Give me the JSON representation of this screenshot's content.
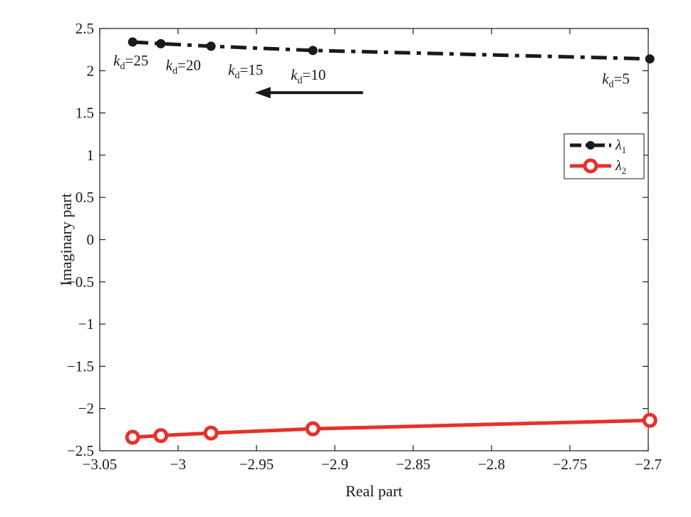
{
  "chart_data": {
    "type": "line",
    "title": "",
    "xlabel": "Real part",
    "ylabel": "Imaginary part",
    "xlim": [
      -3.05,
      -2.7
    ],
    "ylim": [
      -2.5,
      2.5
    ],
    "xticks": [
      -3.05,
      -3.0,
      -2.95,
      -2.9,
      -2.85,
      -2.8,
      -2.75,
      -2.7
    ],
    "xtick_labels": [
      "−3.05",
      "−3",
      "−2.95",
      "−2.9",
      "−2.85",
      "−2.8",
      "−2.75",
      "−2.7"
    ],
    "yticks": [
      -2.5,
      -2.0,
      -1.5,
      -1.0,
      -0.5,
      0,
      0.5,
      1.0,
      1.5,
      2.0,
      2.5
    ],
    "ytick_labels": [
      "−2.5",
      "−2",
      "−1.5",
      "−1",
      "−0.5",
      "0",
      "0.5",
      "1",
      "1.5",
      "2",
      "2.5"
    ],
    "grid": false,
    "legend_position": "top-right",
    "series": [
      {
        "name": "λ",
        "subscript": "1",
        "color": "#1a1a1a",
        "line_style": "dash-dot",
        "marker": "filled-circle",
        "x": [
          -3.029,
          -3.011,
          -2.979,
          -2.914,
          -2.699
        ],
        "y": [
          2.34,
          2.32,
          2.29,
          2.24,
          2.14
        ]
      },
      {
        "name": "λ",
        "subscript": "2",
        "color": "#e8302a",
        "line_style": "solid",
        "marker": "open-circle",
        "x": [
          -3.029,
          -3.011,
          -2.979,
          -2.914,
          -2.699
        ],
        "y": [
          -2.34,
          -2.32,
          -2.29,
          -2.24,
          -2.14
        ]
      }
    ],
    "annotations": [
      {
        "k": "k",
        "sub": "d",
        "text": "=25",
        "x": -3.029,
        "y": 2.34
      },
      {
        "k": "k",
        "sub": "d",
        "text": "=20",
        "x": -3.011,
        "y": 2.32
      },
      {
        "k": "k",
        "sub": "d",
        "text": "=15",
        "x": -2.979,
        "y": 2.29
      },
      {
        "k": "k",
        "sub": "d",
        "text": "=10",
        "x": -2.914,
        "y": 2.24
      },
      {
        "k": "k",
        "sub": "d",
        "text": "=5",
        "x": -2.699,
        "y": 2.14
      }
    ],
    "arrow": {
      "from": [
        -2.882,
        1.74
      ],
      "to": [
        -2.951,
        1.74
      ],
      "direction": "left"
    }
  }
}
